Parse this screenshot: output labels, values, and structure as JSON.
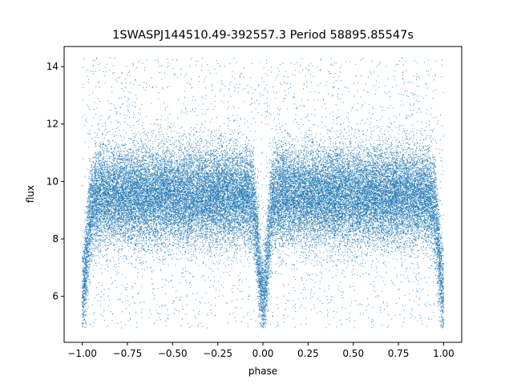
{
  "chart_data": {
    "type": "scatter",
    "title": "1SWASPJ144510.49-392557.3 Period 58895.85547s",
    "xlabel": "phase",
    "ylabel": "flux",
    "xlim": [
      -1.1,
      1.1
    ],
    "ylim": [
      4.4,
      14.7
    ],
    "xticks": [
      -1.0,
      -0.75,
      -0.5,
      -0.25,
      0.0,
      0.25,
      0.5,
      0.75,
      1.0
    ],
    "xtick_labels": [
      "−1.00",
      "−0.75",
      "−0.50",
      "−0.25",
      "0.00",
      "0.25",
      "0.50",
      "0.75",
      "1.00"
    ],
    "yticks": [
      6,
      8,
      10,
      12,
      14
    ],
    "ytick_labels": [
      "6",
      "8",
      "10",
      "12",
      "14"
    ],
    "grid": false,
    "legend": "none",
    "point_color": "#1f77b4",
    "series": [
      {
        "x_range": [
          -1.0,
          1.0
        ],
        "y_range": [
          4.9,
          14.3
        ],
        "baseline_flux": 9.5,
        "eclipse_phases": [
          -1.0,
          0.0,
          1.0
        ],
        "eclipse_min_flux": 6.0,
        "approx_points": 40000
      }
    ]
  }
}
